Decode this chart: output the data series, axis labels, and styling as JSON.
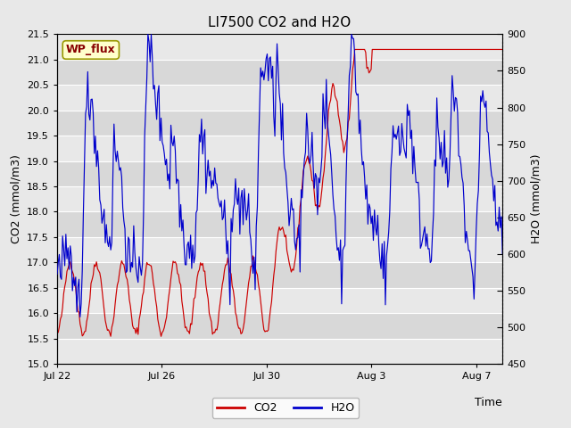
{
  "title": "LI7500 CO2 and H2O",
  "xlabel": "Time",
  "ylabel_left": "CO2 (mmol/m3)",
  "ylabel_right": "H2O (mmol/m3)",
  "co2_ylim": [
    15.0,
    21.5
  ],
  "h2o_ylim": [
    450,
    900
  ],
  "co2_yticks": [
    15.0,
    15.5,
    16.0,
    16.5,
    17.0,
    17.5,
    18.0,
    18.5,
    19.0,
    19.5,
    20.0,
    20.5,
    21.0,
    21.5
  ],
  "h2o_yticks": [
    450,
    500,
    550,
    600,
    650,
    700,
    750,
    800,
    850,
    900
  ],
  "xtick_labels": [
    "Jul 22",
    "Jul 26",
    "Jul 30",
    "Aug 3",
    "Aug 7"
  ],
  "co2_color": "#cc0000",
  "h2o_color": "#0000cc",
  "legend_co2": "CO2",
  "legend_h2o": "H2O",
  "wp_flux_text": "WP_flux",
  "wp_flux_bg": "#ffffcc",
  "wp_flux_border": "#999900",
  "background_color": "#e8e8e8",
  "band_light": "#e8e8e8",
  "band_dark": "#d8d8d8",
  "title_fontsize": 11,
  "label_fontsize": 9,
  "tick_fontsize": 8
}
